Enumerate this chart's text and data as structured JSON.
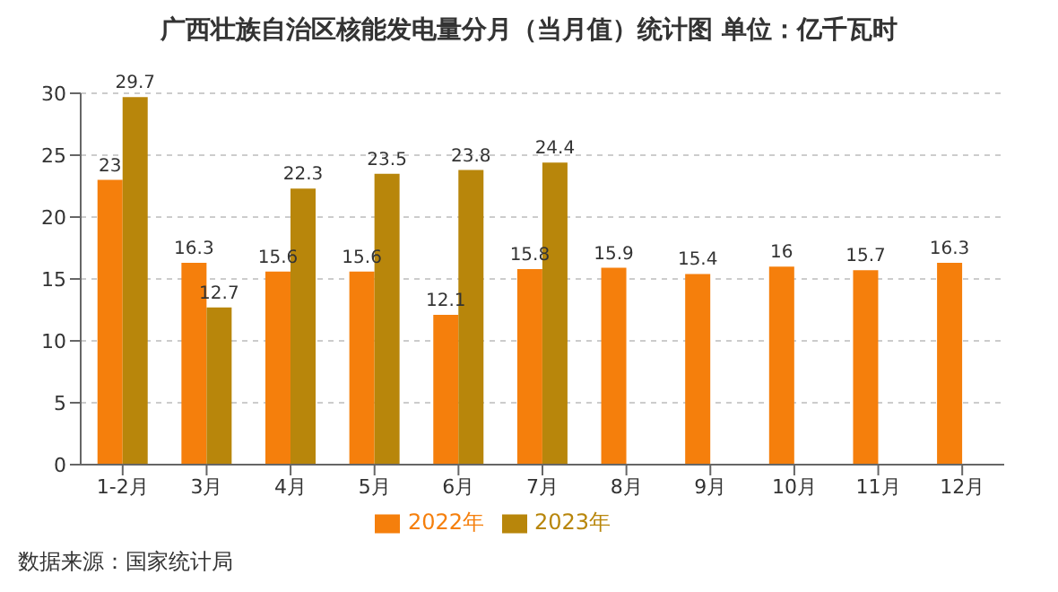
{
  "chart_data": {
    "type": "bar",
    "title": "广西壮族自治区核能发电量分月（当月值）统计图  单位：亿千瓦时",
    "categories": [
      "1-2月",
      "3月",
      "4月",
      "5月",
      "6月",
      "7月",
      "8月",
      "9月",
      "10月",
      "11月",
      "12月"
    ],
    "series": [
      {
        "name": "2022年",
        "color": "#f57f0c",
        "values": [
          23,
          16.3,
          15.6,
          15.6,
          12.1,
          15.8,
          15.9,
          15.4,
          16,
          15.7,
          16.3
        ]
      },
      {
        "name": "2023年",
        "color": "#b8860b",
        "values": [
          29.7,
          12.7,
          22.3,
          23.5,
          23.8,
          24.4,
          null,
          null,
          null,
          null,
          null
        ]
      }
    ],
    "ylim": [
      0,
      30
    ],
    "yticks": [
      0,
      5,
      10,
      15,
      20,
      25,
      30
    ],
    "grid": "y",
    "legend": "bottom",
    "data_labels": true,
    "annotations": [
      "数据来源：国家统计局"
    ]
  }
}
